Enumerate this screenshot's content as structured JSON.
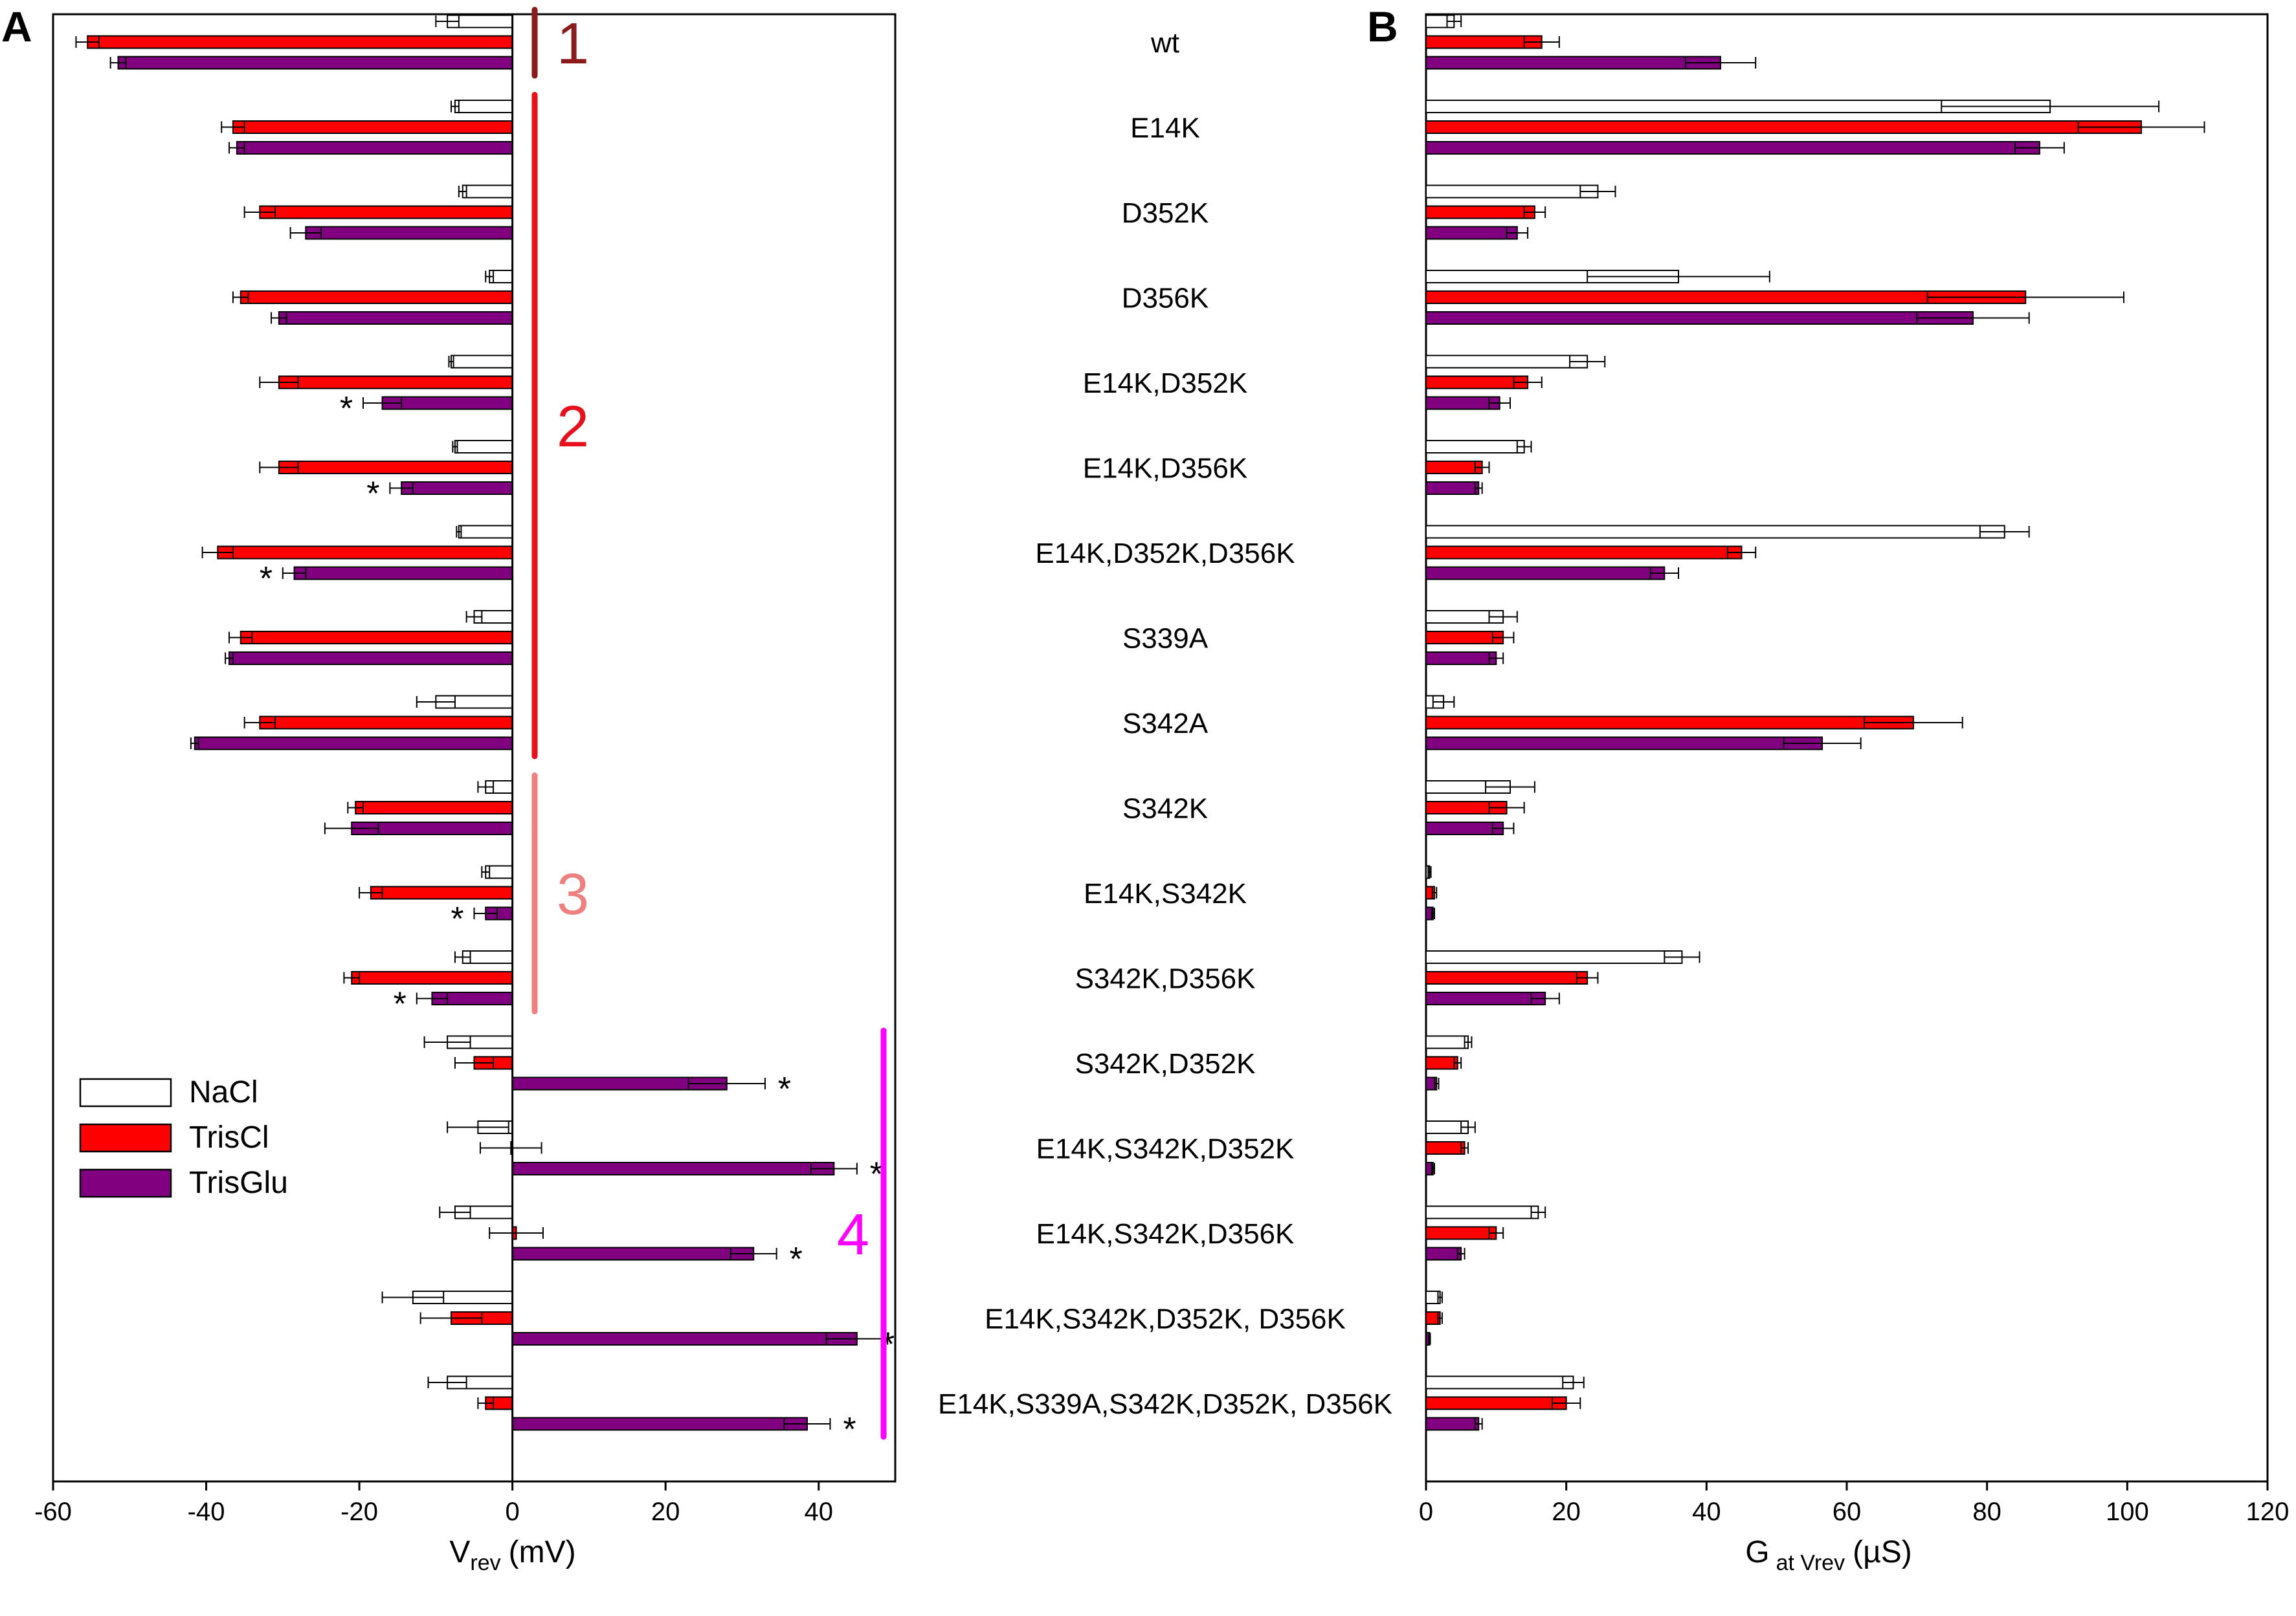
{
  "figure": {
    "panel_a_label": "A",
    "panel_b_label": "B",
    "colors": {
      "NaCl": "#ffffff",
      "TrisCl": "#ff0000",
      "TrisGlu": "#800080"
    }
  },
  "chart_data": [
    {
      "type": "bar",
      "orientation": "horizontal",
      "panel": "A",
      "title": "",
      "xlabel": "V",
      "xlabel_sub": "rev",
      "xlabel_unit": "(mV)",
      "xlim": [
        -60,
        50
      ],
      "xticks": [
        -60,
        -40,
        -20,
        0,
        20,
        40
      ],
      "grid": false,
      "legend_position": "lower-left",
      "categories": [
        "wt",
        "E14K",
        "D352K",
        "D356K",
        "E14K,D352K",
        "E14K,D356K",
        "E14K,D352K,D356K",
        "S339A",
        "S342A",
        "S342K",
        "E14K,S342K",
        "S342K,D356K",
        "S342K,D352K",
        "E14K,S342K,D352K",
        "E14K,S342K,D356K",
        "E14K,S342K,D352K, D356K",
        "E14K,S339A,S342K,D352K, D356K"
      ],
      "series": [
        {
          "name": "NaCl",
          "values": [
            -8.5,
            -7.5,
            -6.5,
            -3,
            -8,
            -7.5,
            -7,
            -5,
            -10,
            -3.5,
            -3.5,
            -6.5,
            -8.5,
            -4.5,
            -7.5,
            -13,
            -8.5
          ],
          "errors": [
            1.5,
            0.5,
            0.5,
            0.5,
            0.3,
            0.3,
            0.3,
            1,
            2.5,
            1,
            0.5,
            1,
            3,
            4,
            2,
            4,
            2.5
          ]
        },
        {
          "name": "TrisCl",
          "values": [
            -55.5,
            -36.5,
            -33,
            -35.5,
            -30.5,
            -30.5,
            -38.5,
            -35.5,
            -33,
            -20.5,
            -18.5,
            -21,
            -5,
            -0.2,
            0.5,
            -8,
            -3.5
          ],
          "errors": [
            1.5,
            1.5,
            2,
            1,
            2.5,
            2.5,
            2,
            1.5,
            2,
            1,
            1.5,
            1,
            2.5,
            4,
            3.5,
            4,
            1
          ]
        },
        {
          "name": "TrisGlu",
          "values": [
            -51.5,
            -36,
            -27,
            -30.5,
            -17,
            -14.5,
            -28.5,
            -37,
            -41.5,
            -21,
            -3.5,
            -10.5,
            28,
            42,
            31.5,
            45,
            38.5
          ],
          "errors": [
            1,
            1,
            2,
            1,
            2.5,
            1.5,
            1.5,
            0.5,
            0.5,
            3.5,
            1.5,
            2,
            5,
            3,
            3,
            4,
            3
          ]
        }
      ],
      "significance": [
        "",
        "",
        "",
        "",
        "*",
        "*",
        "*",
        "",
        "",
        "",
        "*",
        "*",
        "*",
        "*",
        "*",
        "*",
        "*"
      ],
      "groups": [
        {
          "label": "1",
          "color": "#8b1a1a",
          "from": 0,
          "to": 0
        },
        {
          "label": "2",
          "color": "#e8111b",
          "from": 1,
          "to": 8
        },
        {
          "label": "3",
          "color": "#f08080",
          "from": 9,
          "to": 11
        },
        {
          "label": "4",
          "color": "#ff00ff",
          "from": 12,
          "to": 16
        }
      ]
    },
    {
      "type": "bar",
      "orientation": "horizontal",
      "panel": "B",
      "title": "",
      "xlabel": "G",
      "xlabel_sub": "at Vrev",
      "xlabel_unit": "(µS)",
      "xlim": [
        0,
        120
      ],
      "xticks": [
        0,
        20,
        40,
        60,
        80,
        100,
        120
      ],
      "grid": false,
      "categories": [
        "wt",
        "E14K",
        "D352K",
        "D356K",
        "E14K,D352K",
        "E14K,D356K",
        "E14K,D352K,D356K",
        "S339A",
        "S342A",
        "S342K",
        "E14K,S342K",
        "S342K,D356K",
        "S342K,D352K",
        "E14K,S342K,D352K",
        "E14K,S342K,D356K",
        "E14K,S342K,D352K, D356K",
        "E14K,S339A,S342K,D352K, D356K"
      ],
      "series": [
        {
          "name": "NaCl",
          "values": [
            4,
            89,
            24.5,
            36,
            23,
            14,
            82.5,
            11,
            2.5,
            12,
            0.5,
            36.5,
            6,
            6,
            16,
            2,
            21
          ],
          "errors": [
            1,
            15.5,
            2.5,
            13,
            2.5,
            1,
            3.5,
            2,
            1.5,
            3.5,
            0.2,
            2.5,
            0.5,
            1,
            1,
            0.3,
            1.5
          ]
        },
        {
          "name": "TrisCl",
          "values": [
            16.5,
            102,
            15.5,
            85.5,
            14.5,
            8,
            45,
            11,
            69.5,
            11.5,
            1.2,
            23,
            4.5,
            5.5,
            10,
            2,
            20
          ],
          "errors": [
            2.5,
            9,
            1.5,
            14,
            2,
            1,
            2,
            1.5,
            7,
            2.5,
            0.3,
            1.5,
            0.5,
            0.5,
            1,
            0.3,
            2
          ]
        },
        {
          "name": "TrisGlu",
          "values": [
            42,
            87.5,
            13,
            78,
            10.5,
            7.5,
            34,
            10,
            56.5,
            11,
            1,
            17,
            1.5,
            1,
            5,
            0.5,
            7.5
          ],
          "errors": [
            5,
            3.5,
            1.5,
            8,
            1.5,
            0.5,
            2,
            1,
            5.5,
            1.5,
            0.2,
            2,
            0.3,
            0.2,
            0.5,
            0.1,
            0.5
          ]
        }
      ]
    }
  ]
}
